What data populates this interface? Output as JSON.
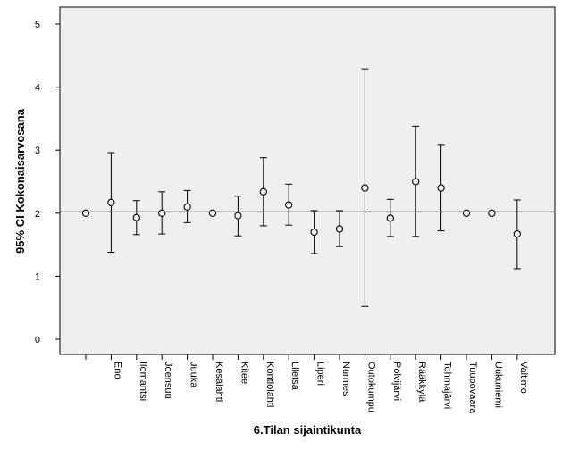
{
  "chart_data": {
    "type": "errorbar",
    "xlabel": "6.Tilan sijaintikunta",
    "ylabel": "95% CI Kokonaisarvosana",
    "ylim": [
      0,
      5
    ],
    "yticks": [
      0,
      1,
      2,
      3,
      4,
      5
    ],
    "reference_line": 2.02,
    "grid": false,
    "categories": [
      "",
      "Eno",
      "Ilomantsi",
      "Joensuu",
      "Juuka",
      "Kesälahti",
      "Kitee",
      "Kontiolahti",
      "Liietsa",
      "Liperi",
      "Nurmes",
      "Outokumpu",
      "Polvijärvi",
      "Rääkkylä",
      "Tohmajärvi",
      "Tuupovaara",
      "Uukuniemi",
      "Valtimo"
    ],
    "means": [
      2.0,
      2.17,
      1.93,
      2.0,
      2.1,
      2.0,
      1.96,
      2.34,
      2.13,
      1.7,
      1.75,
      2.4,
      1.92,
      2.5,
      2.4,
      2.0,
      2.0,
      1.67
    ],
    "lower": [
      null,
      1.38,
      1.66,
      1.67,
      1.85,
      null,
      1.64,
      1.8,
      1.81,
      1.36,
      1.47,
      0.52,
      1.63,
      1.63,
      1.72,
      null,
      null,
      1.12
    ],
    "upper": [
      null,
      2.96,
      2.2,
      2.34,
      2.36,
      null,
      2.27,
      2.88,
      2.46,
      2.04,
      2.04,
      4.29,
      2.22,
      3.38,
      3.09,
      null,
      null,
      2.21
    ]
  },
  "colors": {
    "plot_background": "#efefef",
    "page_background": "#ffffff",
    "marks": "#000000",
    "reference_line": "#444444"
  }
}
